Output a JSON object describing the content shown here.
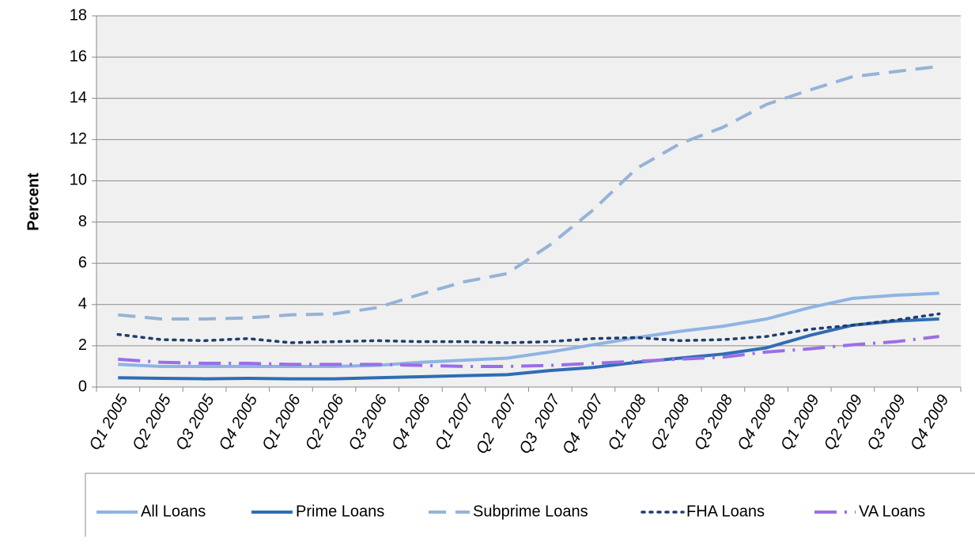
{
  "chart_data": {
    "type": "line",
    "ylabel": "Percent",
    "categories": [
      "Q1 2005",
      "Q2 2005",
      "Q3 2005",
      "Q4 2005",
      "Q1 2006",
      "Q2 2006",
      "Q3 2006",
      "Q4 2006",
      "Q1 2007",
      "Q2  2007",
      "Q3  2007",
      "Q4  2007",
      "Q1 2008",
      "Q2 2008",
      "Q3 2008",
      "Q4 2008",
      "Q1 2009",
      "Q2 2009",
      "Q3 2009",
      "Q4 2009"
    ],
    "series": [
      {
        "name": "All Loans",
        "color": "#8eb4e3",
        "style": "solid",
        "values": [
          1.1,
          1.0,
          1.0,
          1.0,
          1.0,
          1.0,
          1.05,
          1.2,
          1.3,
          1.4,
          1.7,
          2.05,
          2.4,
          2.7,
          2.95,
          3.3,
          3.85,
          4.3,
          4.45,
          4.55
        ]
      },
      {
        "name": "Prime Loans",
        "color": "#2f6db5",
        "style": "solid",
        "values": [
          0.45,
          0.42,
          0.4,
          0.42,
          0.4,
          0.4,
          0.45,
          0.5,
          0.55,
          0.6,
          0.8,
          0.95,
          1.2,
          1.4,
          1.6,
          1.9,
          2.5,
          3.0,
          3.2,
          3.3
        ]
      },
      {
        "name": "Subprime Loans",
        "color": "#95b3d7",
        "style": "dashed",
        "values": [
          3.5,
          3.3,
          3.3,
          3.35,
          3.5,
          3.55,
          3.85,
          4.5,
          5.1,
          5.5,
          6.9,
          8.6,
          10.6,
          11.8,
          12.6,
          13.7,
          14.4,
          15.05,
          15.3,
          15.55
        ]
      },
      {
        "name": "FHA Loans",
        "color": "#1f3e6e",
        "style": "dotted",
        "values": [
          2.55,
          2.3,
          2.25,
          2.35,
          2.15,
          2.2,
          2.25,
          2.2,
          2.2,
          2.15,
          2.2,
          2.35,
          2.4,
          2.25,
          2.3,
          2.45,
          2.8,
          3.0,
          3.25,
          3.55
        ]
      },
      {
        "name": "VA Loans",
        "color": "#9b6ee8",
        "style": "dashdot",
        "values": [
          1.35,
          1.2,
          1.15,
          1.15,
          1.1,
          1.1,
          1.1,
          1.05,
          1.0,
          1.0,
          1.05,
          1.15,
          1.25,
          1.35,
          1.45,
          1.7,
          1.85,
          2.05,
          2.2,
          2.45
        ]
      }
    ],
    "ylim": [
      0,
      18
    ],
    "yticks": [
      0,
      2,
      4,
      6,
      8,
      10,
      12,
      14,
      16,
      18
    ],
    "grid": true,
    "legend": "bottom"
  }
}
